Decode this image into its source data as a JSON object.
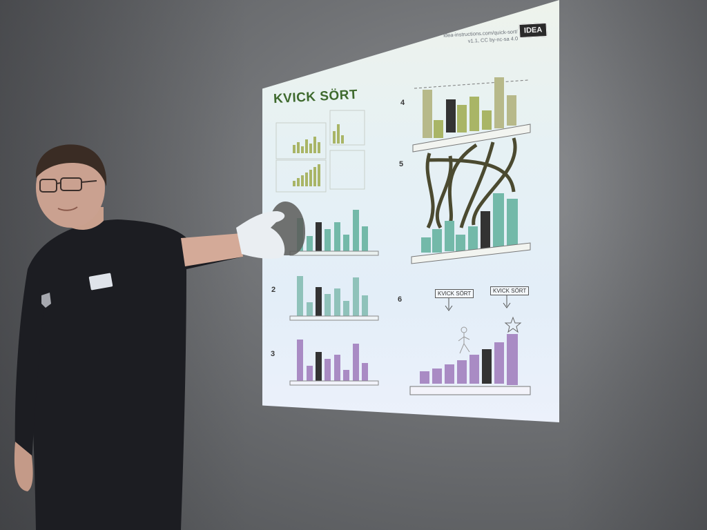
{
  "slide": {
    "title": "KVICK SÖRT",
    "credit_line1": "idea-instructions.com/quick-sort/",
    "credit_line2": "v1.1, CC by-nc-sa 4.0",
    "logo": "IDEA",
    "steps": [
      "4",
      "5",
      "2",
      "6",
      "3"
    ],
    "box_label_left": "KVICK SÖRT",
    "box_label_right": "KVICK SÖRT"
  },
  "colors": {
    "green_bars": "#a9b566",
    "teal_bars": "#73b9a9",
    "purple_bars": "#a98bc4",
    "olive_arrows": "#4b4a30",
    "title_green": "#3f6a2e"
  },
  "icons": [
    "arrow-icon",
    "star-icon",
    "person-icon",
    "striped-pivot-bar"
  ]
}
